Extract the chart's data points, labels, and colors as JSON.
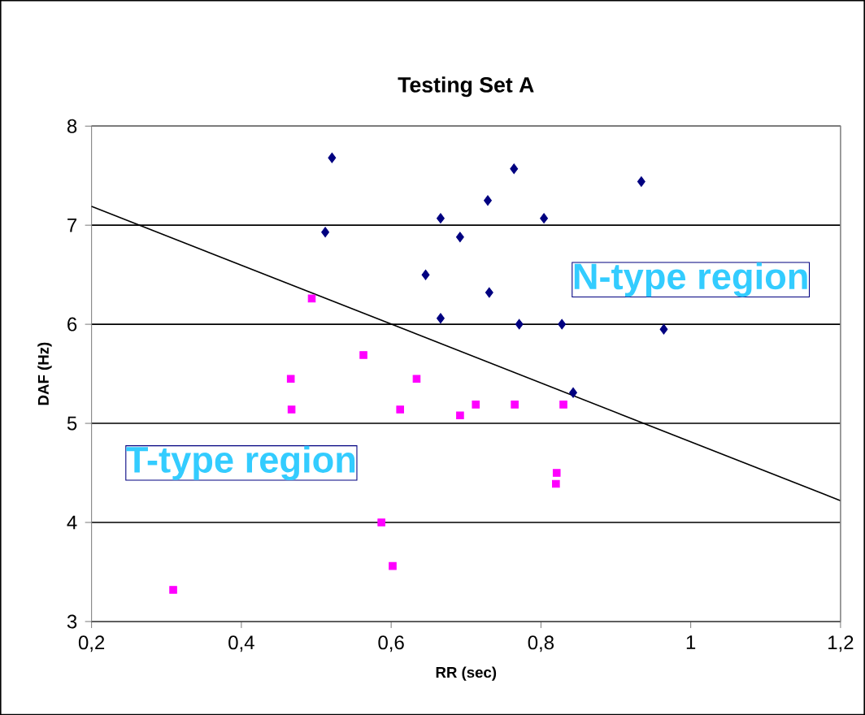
{
  "chart_data": {
    "type": "scatter",
    "title": "Testing Set A",
    "xlabel": "RR (sec)",
    "ylabel": "DAF (Hz)",
    "xlim": [
      0.2,
      1.2
    ],
    "ylim": [
      3,
      8
    ],
    "xticks": [
      {
        "value": 0.2,
        "label": "0,2"
      },
      {
        "value": 0.4,
        "label": "0,4"
      },
      {
        "value": 0.6,
        "label": "0,6"
      },
      {
        "value": 0.8,
        "label": "0,8"
      },
      {
        "value": 1,
        "label": "1"
      },
      {
        "value": 1.2,
        "label": "1,2"
      }
    ],
    "yticks": [
      3,
      4,
      5,
      6,
      7,
      8
    ],
    "grid": "y",
    "series": [
      {
        "color": "#000080",
        "marker": "diamond",
        "x": [
          0.521,
          0.512,
          0.764,
          0.934,
          0.729,
          0.666,
          0.804,
          0.692,
          0.646,
          0.731,
          0.666,
          0.771,
          0.828,
          0.964,
          0.843
        ],
        "values": [
          7.68,
          6.93,
          7.57,
          7.44,
          7.25,
          7.07,
          7.07,
          6.88,
          6.5,
          6.32,
          6.06,
          6.0,
          6.0,
          5.95,
          5.31
        ]
      },
      {
        "color": "#ff00ff",
        "marker": "square",
        "x": [
          0.494,
          0.563,
          0.466,
          0.634,
          0.467,
          0.612,
          0.692,
          0.713,
          0.765,
          0.83,
          0.821,
          0.82,
          0.587,
          0.602,
          0.309
        ],
        "values": [
          6.26,
          5.69,
          5.45,
          5.45,
          5.14,
          5.14,
          5.08,
          5.19,
          5.19,
          5.19,
          4.5,
          4.39,
          4.0,
          3.56,
          3.32
        ]
      },
      {
        "type": "line",
        "color": "#000000",
        "marker": "none",
        "x": [
          0.2,
          1.2
        ],
        "values": [
          7.19,
          4.22
        ]
      }
    ],
    "annotations": [
      "N-type region",
      "T-type region"
    ]
  }
}
